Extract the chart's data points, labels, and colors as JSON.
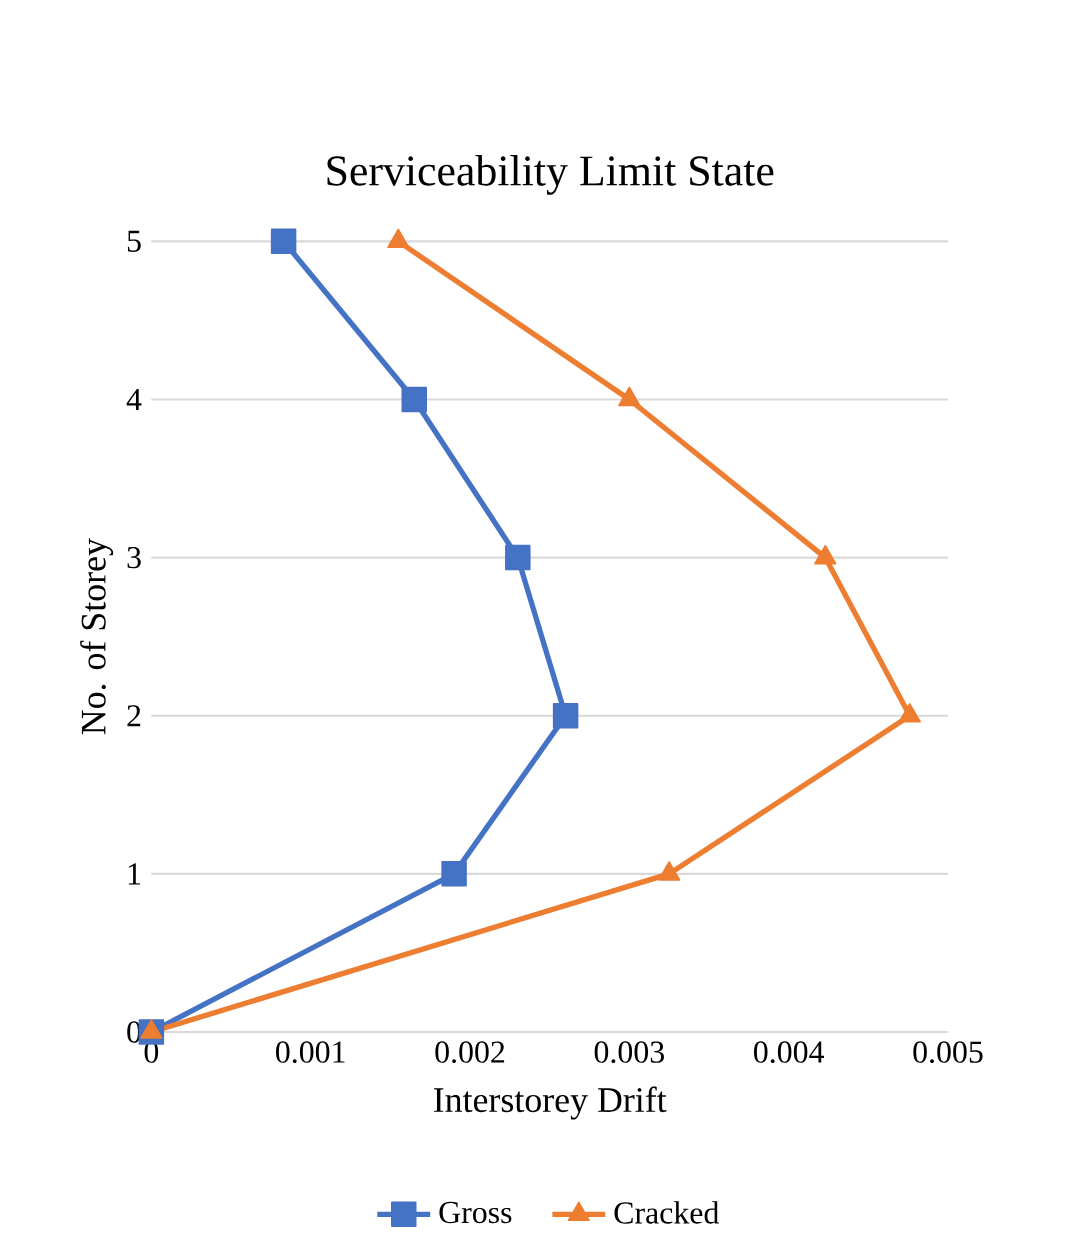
{
  "chart_data": {
    "type": "line",
    "title": "Serviceability Limit State",
    "xlabel": "Interstorey Drift",
    "ylabel": "No. of Storey",
    "xlim": [
      0,
      0.005
    ],
    "xticks": [
      0,
      0.001,
      0.002,
      0.003,
      0.004,
      0.005
    ],
    "ylim": [
      0,
      5
    ],
    "yticks": [
      0,
      1,
      2,
      3,
      4,
      5
    ],
    "grid": "y",
    "legend": "bottom",
    "line_style": "solid",
    "series": [
      {
        "name": "Gross",
        "color": "#4472c4",
        "marker": "square",
        "x": [
          0,
          0.0019,
          0.0026,
          0.0023,
          0.00165,
          0.00083
        ],
        "values": [
          0,
          1,
          2,
          3,
          4,
          5
        ]
      },
      {
        "name": "Cracked",
        "color": "#ed7d31",
        "marker": "triangle",
        "x": [
          0,
          0.00325,
          0.00476,
          0.00423,
          0.003,
          0.00155
        ],
        "values": [
          0,
          1,
          2,
          3,
          4,
          5
        ]
      }
    ]
  }
}
